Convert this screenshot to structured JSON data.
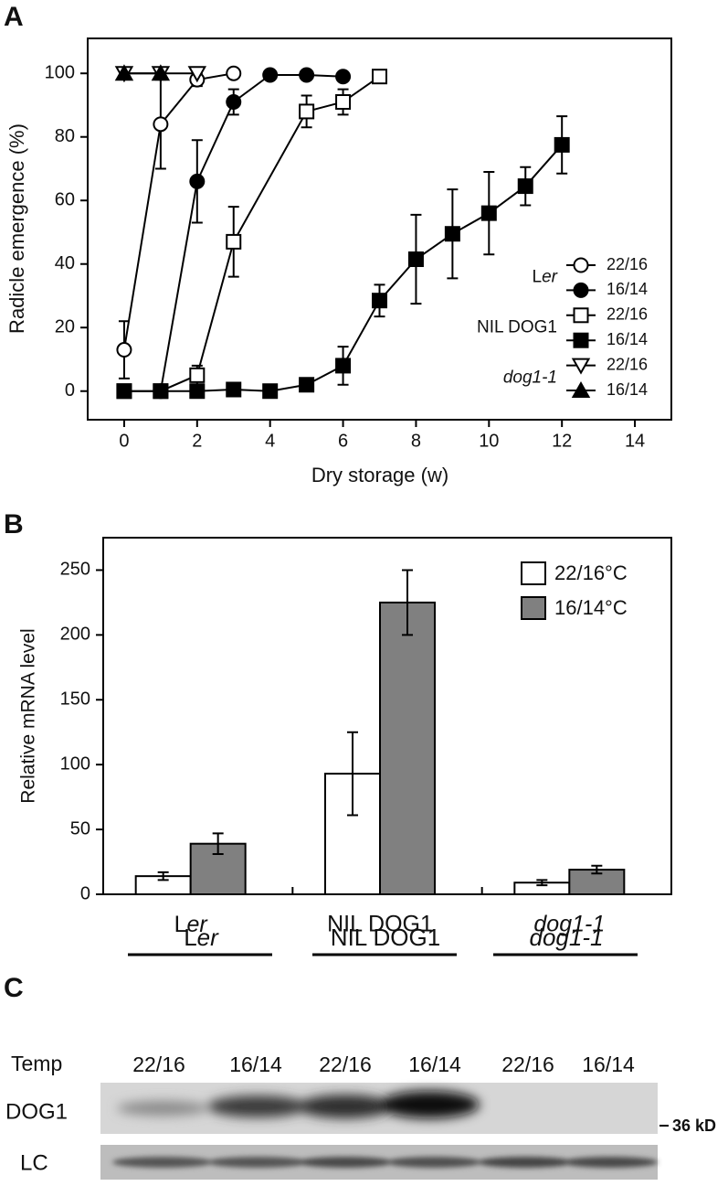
{
  "chart_data": [
    {
      "type": "line",
      "panel_label": "A",
      "xlabel": "Dry storage (w)",
      "ylabel": "Radicle emergence (%)",
      "xlim": [
        -1,
        15
      ],
      "ylim": [
        -9,
        111
      ],
      "xticks": [
        0,
        2,
        4,
        6,
        8,
        10,
        12,
        14
      ],
      "yticks": [
        0,
        20,
        40,
        60,
        80,
        100
      ],
      "legend_groups": [
        "Ler",
        "NIL DOG1",
        "dog1-1"
      ],
      "series": [
        {
          "name": "22/16",
          "color": "#000000",
          "marker": "circle-open",
          "x": [
            0,
            1,
            2,
            3
          ],
          "values": [
            13,
            84,
            98,
            100
          ],
          "errors": [
            9,
            14,
            2,
            0
          ]
        },
        {
          "name": "16/14",
          "color": "#000000",
          "marker": "circle-filled",
          "x": [
            1,
            2,
            3,
            4,
            5,
            6
          ],
          "values": [
            0,
            66,
            91,
            99.5,
            99.5,
            99
          ],
          "errors": [
            0,
            13,
            4,
            1,
            0,
            1
          ]
        },
        {
          "name": "22/16",
          "color": "#000000",
          "marker": "square-open",
          "x": [
            0,
            1,
            2,
            3,
            5,
            6,
            7
          ],
          "values": [
            0,
            0,
            5,
            47,
            88,
            91,
            99
          ],
          "errors": [
            0,
            0,
            3,
            11,
            5,
            4,
            0
          ]
        },
        {
          "name": "16/14",
          "color": "#000000",
          "marker": "square-filled",
          "x": [
            0,
            1,
            2,
            3,
            4,
            5,
            6,
            7,
            8,
            9,
            10,
            11,
            12
          ],
          "values": [
            0,
            0,
            0,
            0.5,
            0,
            2,
            8,
            28.5,
            41.5,
            49.5,
            56,
            64.5,
            77.5
          ],
          "errors": [
            0,
            0,
            0,
            0,
            0,
            1,
            6,
            5,
            14,
            14,
            13,
            6,
            9
          ]
        },
        {
          "name": "22/16",
          "color": "#000000",
          "marker": "triangle-down-open",
          "x": [
            0,
            1,
            2
          ],
          "values": [
            100,
            100,
            100
          ],
          "errors": [
            0,
            0,
            0
          ]
        },
        {
          "name": "16/14",
          "color": "#000000",
          "marker": "triangle-up-filled",
          "x": [
            0,
            1
          ],
          "values": [
            100,
            100
          ],
          "errors": [
            0,
            0
          ]
        }
      ]
    },
    {
      "type": "bar",
      "panel_label": "B",
      "ylabel": "Relative mRNA level",
      "categories": [
        "Ler",
        "NIL DOG1",
        "dog1-1"
      ],
      "ylim": [
        0,
        275
      ],
      "yticks": [
        0,
        50,
        100,
        150,
        200,
        250
      ],
      "legend": "upper-right",
      "series": [
        {
          "name": "22/16°C",
          "color": "#ffffff",
          "values": [
            14,
            93,
            9
          ],
          "errors": [
            3,
            32,
            2
          ]
        },
        {
          "name": "16/14°C",
          "color": "#808080",
          "values": [
            39,
            225,
            19
          ],
          "errors": [
            8,
            25,
            3
          ]
        }
      ]
    }
  ],
  "blot": {
    "panel_label": "C",
    "groups": [
      "Ler",
      "NIL DOG1",
      "dog1-1"
    ],
    "row_header": "Temp",
    "lanes": [
      "22/16",
      "16/14",
      "22/16",
      "16/14",
      "22/16",
      "16/14"
    ],
    "rows": [
      "DOG1",
      "LC"
    ],
    "size_marker": "36 kD"
  }
}
